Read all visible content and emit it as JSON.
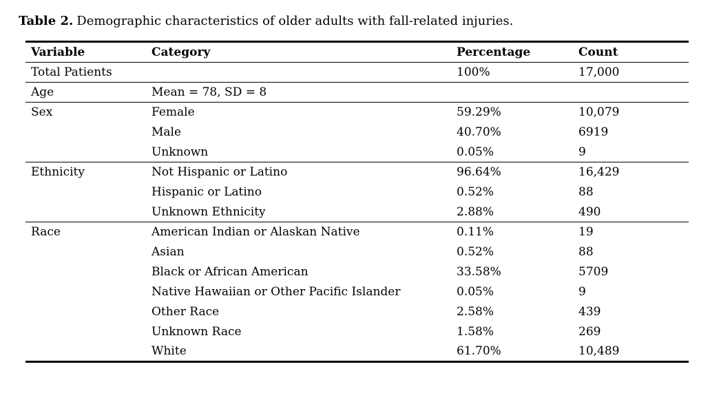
{
  "title": {
    "label": "Table 2.",
    "text": "Demographic characteristics of older adults with fall-related injuries."
  },
  "table": {
    "headers": {
      "variable": "Variable",
      "category": "Category",
      "percentage": "Percentage",
      "count": "Count"
    },
    "rows": [
      {
        "variable": "Total Patients",
        "category": "",
        "percentage": "100%",
        "count": "17,000"
      },
      {
        "variable": "Age",
        "category": "Mean = 78, SD = 8",
        "percentage": "",
        "count": ""
      },
      {
        "variable": "Sex",
        "category": "Female",
        "percentage": "59.29%",
        "count": "10,079"
      },
      {
        "variable": "",
        "category": "Male",
        "percentage": "40.70%",
        "count": "6919"
      },
      {
        "variable": "",
        "category": "Unknown",
        "percentage": "0.05%",
        "count": "9"
      },
      {
        "variable": "Ethnicity",
        "category": "Not Hispanic or Latino",
        "percentage": "96.64%",
        "count": "16,429"
      },
      {
        "variable": "",
        "category": "Hispanic or Latino",
        "percentage": "0.52%",
        "count": "88"
      },
      {
        "variable": "",
        "category": "Unknown Ethnicity",
        "percentage": "2.88%",
        "count": "490"
      },
      {
        "variable": "Race",
        "category": "American Indian or Alaskan Native",
        "percentage": "0.11%",
        "count": "19"
      },
      {
        "variable": "",
        "category": "Asian",
        "percentage": "0.52%",
        "count": "88"
      },
      {
        "variable": "",
        "category": "Black or African American",
        "percentage": "33.58%",
        "count": "5709"
      },
      {
        "variable": "",
        "category": "Native Hawaiian or Other Pacific Islander",
        "percentage": "0.05%",
        "count": "9"
      },
      {
        "variable": "",
        "category": "Other Race",
        "percentage": "2.58%",
        "count": "439"
      },
      {
        "variable": "",
        "category": "Unknown Race",
        "percentage": "1.58%",
        "count": "269"
      },
      {
        "variable": "",
        "category": "White",
        "percentage": "61.70%",
        "count": "10,489"
      }
    ]
  }
}
